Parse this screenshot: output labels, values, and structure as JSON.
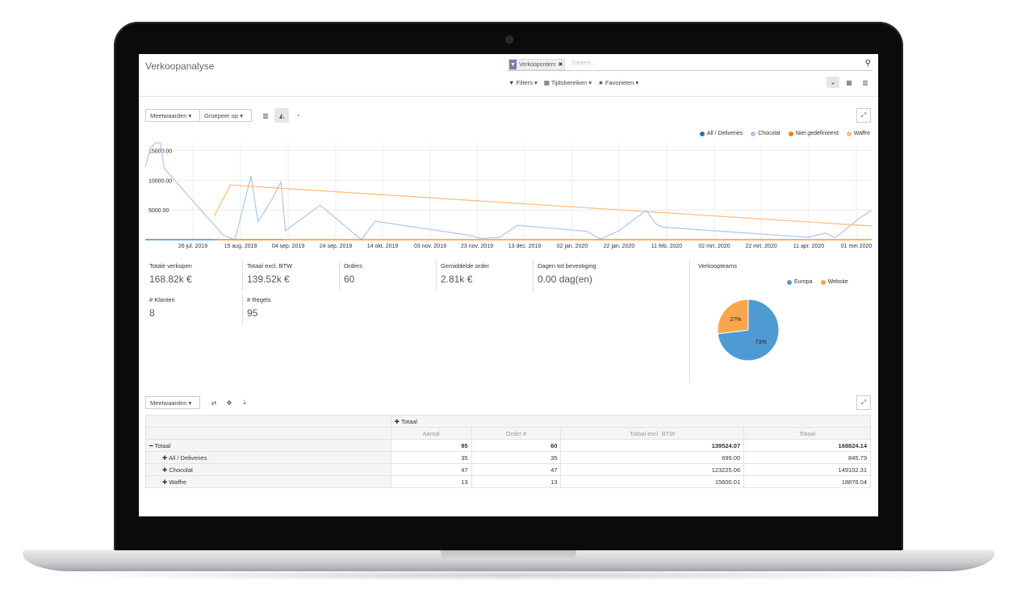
{
  "app": {
    "title": "Verkoopanalyse"
  },
  "search": {
    "facet_label": "Verkooporders",
    "placeholder": "Zoeken..."
  },
  "filters": {
    "filters": "Filters",
    "time_ranges": "Tijdsbereiken",
    "favorites": "Favorieten"
  },
  "views": [
    "dashboard-icon",
    "pivot-icon",
    "graph-icon"
  ],
  "graph_toolbar": {
    "measures": "Meetwaarden",
    "group_by": "Groepeer op"
  },
  "chart_data": [
    {
      "type": "line",
      "x": [
        "26 jul. 2019",
        "15 aug. 2019",
        "04 sep. 2019",
        "24 sep. 2019",
        "14 okt. 2019",
        "03 nov. 2019",
        "23 nov. 2019",
        "13 dec. 2019",
        "02 jan. 2020",
        "22 jan. 2020",
        "11 feb. 2020",
        "02 mrt. 2020",
        "22 mrt. 2020",
        "11 apr. 2020",
        "01 mei 2020"
      ],
      "yticks": [
        "5000.00",
        "10000.00",
        "15000.00"
      ],
      "ylim": [
        0,
        16300
      ],
      "series": [
        {
          "name": "All / Deliveries",
          "color": "#1f77b4",
          "points": [
            [
              0,
              0
            ],
            [
              23,
              0
            ],
            [
              25,
              0
            ],
            [
              30,
              30
            ]
          ]
        },
        {
          "name": "Chocolat",
          "color": "#aec7e8",
          "points": [
            [
              0,
              12200
            ],
            [
              1.2,
              15500
            ],
            [
              2.2,
              16300
            ],
            [
              3.3,
              16300
            ],
            [
              4.1,
              12000
            ],
            [
              17,
              700
            ],
            [
              19.5,
              0
            ],
            [
              23,
              10700
            ],
            [
              24.5,
              3000
            ],
            [
              27.5,
              6700
            ],
            [
              29.5,
              9700
            ],
            [
              30.5,
              1500
            ],
            [
              38,
              5800
            ],
            [
              47,
              0
            ],
            [
              50,
              3100
            ],
            [
              70,
              800
            ],
            [
              73,
              200
            ],
            [
              77,
              400
            ],
            [
              81,
              2400
            ],
            [
              96,
              1400
            ],
            [
              99,
              100
            ],
            [
              103,
              1500
            ],
            [
              106,
              3200
            ],
            [
              109,
              4900
            ],
            [
              111,
              2700
            ],
            [
              112.5,
              2100
            ],
            [
              144,
              400
            ],
            [
              148,
              1100
            ],
            [
              150,
              300
            ],
            [
              155,
              3400
            ],
            [
              158,
              5000
            ]
          ]
        },
        {
          "name": "Niet gedefinieerd",
          "color": "#ff7f0e",
          "points": [
            [
              15,
              0
            ],
            [
              25,
              0
            ],
            [
              45,
              0
            ],
            [
              70,
              0
            ],
            [
              100,
              0
            ],
            [
              130,
              0
            ],
            [
              158,
              0
            ]
          ]
        },
        {
          "name": "Waffre",
          "color": "#ffbb78",
          "points": [
            [
              15,
              4000
            ],
            [
              18.5,
              9200
            ],
            [
              158,
              2300
            ]
          ]
        }
      ]
    },
    {
      "type": "pie",
      "title": "Verkoopteams",
      "categories": [
        "Europa",
        "Website"
      ],
      "values": [
        73,
        27
      ],
      "labels": [
        "73%",
        "27%"
      ],
      "colors": [
        "#4e9bd4",
        "#fca64b"
      ]
    }
  ],
  "kpis": [
    {
      "label": "Totale verkopen",
      "value": "168.82k €"
    },
    {
      "label": "Totaal excl. BTW",
      "value": "139.52k €"
    },
    {
      "label": "Orders",
      "value": "60"
    },
    {
      "label": "Gemiddelde order",
      "value": "2.81k €"
    },
    {
      "label": "Dagen tot bevestiging",
      "value": "0.00 dag(en)"
    },
    {
      "label": "# Klanten",
      "value": "8"
    },
    {
      "label": "# Regels",
      "value": "95"
    }
  ],
  "pivot": {
    "measures_button": "Meetwaarden",
    "col_header": "Totaal",
    "measures": [
      "Aantal",
      "Order #",
      "Totaal excl. BTW",
      "Totaal"
    ],
    "rows": [
      {
        "label": "Totaal",
        "values": [
          "95",
          "60",
          "139524.07",
          "168824.14"
        ]
      },
      {
        "label": "All / Deliveries",
        "values": [
          "35",
          "35",
          "699.00",
          "845.79"
        ]
      },
      {
        "label": "Chocolat",
        "values": [
          "47",
          "47",
          "123225.06",
          "149102.31"
        ]
      },
      {
        "label": "Waffre",
        "values": [
          "13",
          "13",
          "15600.01",
          "18876.04"
        ]
      }
    ]
  }
}
